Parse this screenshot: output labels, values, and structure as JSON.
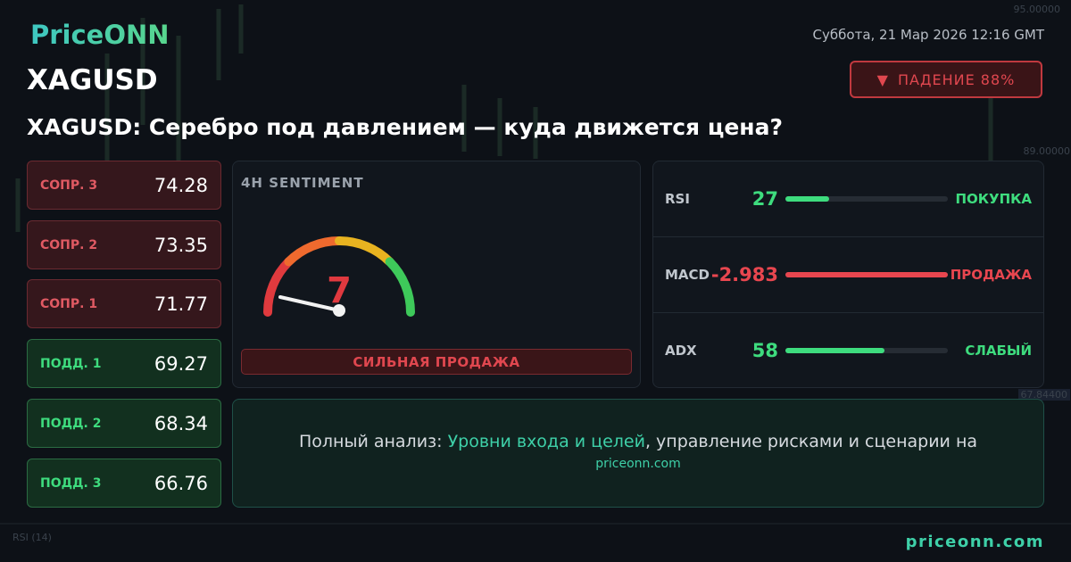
{
  "header": {
    "logo": "PriceONN",
    "date": "Суббота, 21 Мар 2026 12:16 GMT",
    "symbol": "XAGUSD",
    "badge": "ПАДЕНИЕ 88%",
    "headline": "XAGUSD: Серебро под давлением — куда движется цена?"
  },
  "levels": [
    {
      "name": "СОПР. 3",
      "value": 74.28
    },
    {
      "name": "СОПР. 2",
      "value": 73.35
    },
    {
      "name": "СОПР. 1",
      "value": 71.77
    },
    {
      "name": "ПОДД. 1",
      "value": 69.27
    },
    {
      "name": "ПОДД. 2",
      "value": 68.34
    },
    {
      "name": "ПОДД. 3",
      "value": 66.76
    }
  ],
  "sentiment": {
    "title": "4H SENTIMENT",
    "score": 7,
    "verdict": "СИЛЬНАЯ ПРОДАЖА"
  },
  "indicators": [
    {
      "name": "RSI",
      "value": 27,
      "signal": "ПОКУПКА"
    },
    {
      "name": "MACD",
      "value": -2.983,
      "signal": "ПРОДАЖА"
    },
    {
      "name": "ADX",
      "value": 58,
      "signal": "СЛАБЫЙ"
    }
  ],
  "cta": {
    "prefix": "Полный анализ: ",
    "link": "Уровни входа и целей",
    "suffix": ", управление рисками и сценарии на",
    "url": "priceonn.com"
  },
  "footer": {
    "url": "priceonn.com"
  },
  "background": {
    "axis_labels": [
      "95.00000",
      "89.00000",
      "67.84400"
    ],
    "indicator": {
      "name": "RSI",
      "period": "(14)"
    }
  }
}
